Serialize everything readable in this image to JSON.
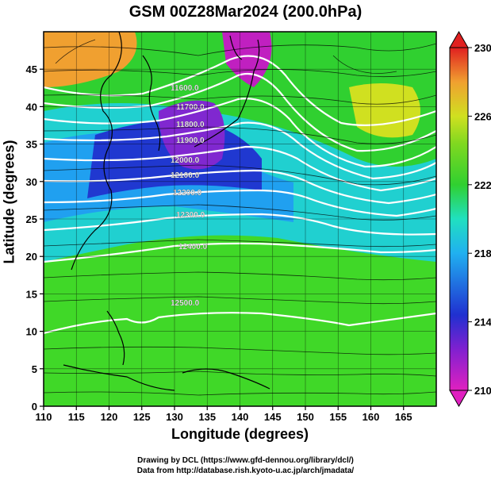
{
  "title": "GSM 00Z28Mar2024 (200.0hPa)",
  "axes": {
    "xlabel": "Longitude (degrees)",
    "ylabel": "Latitude  (degrees)",
    "x_ticks": [
      "110",
      "115",
      "120",
      "125",
      "130",
      "135",
      "140",
      "145",
      "150",
      "155",
      "160",
      "165"
    ],
    "y_ticks": [
      "0",
      "5",
      "10",
      "15",
      "20",
      "25",
      "30",
      "35",
      "40",
      "45"
    ]
  },
  "colorbar": {
    "ticks": [
      "230",
      "226",
      "222",
      "218",
      "214",
      "210"
    ]
  },
  "credits": [
    "Drawing by DCL (https://www.gfd-dennou.org/library/dcl/)",
    "Data from http://database.rish.kyoto-u.ac.jp/arch/jmadata/"
  ],
  "contour_labels": [
    "11600.0",
    "11700.0",
    "11800.0",
    "11900.0",
    "12000.0",
    "12100.0",
    "12200.0",
    "12300.0",
    "12400.0",
    "12500.0"
  ],
  "colors": {
    "magenta": "#e020c0",
    "blue": "#2030d0",
    "cyan": "#20d0e0",
    "green": "#30d030",
    "yellow": "#d0e020",
    "orange": "#f0a030",
    "red": "#e02020"
  },
  "chart_data": {
    "type": "heatmap",
    "title": "GSM 00Z28Mar2024 (200.0hPa)",
    "xlabel": "Longitude (degrees)",
    "ylabel": "Latitude  (degrees)",
    "xlim": [
      110,
      170
    ],
    "ylim": [
      0,
      50
    ],
    "color_range": [
      210,
      230
    ],
    "colorbar_ticks": [
      210,
      214,
      218,
      222,
      226,
      230
    ],
    "contour_levels": [
      11600,
      11700,
      11800,
      11900,
      12000,
      12100,
      12200,
      12300,
      12400,
      12500
    ],
    "overlays": [
      "geopotential height contours",
      "wind streamlines",
      "coastlines",
      "grid"
    ]
  }
}
